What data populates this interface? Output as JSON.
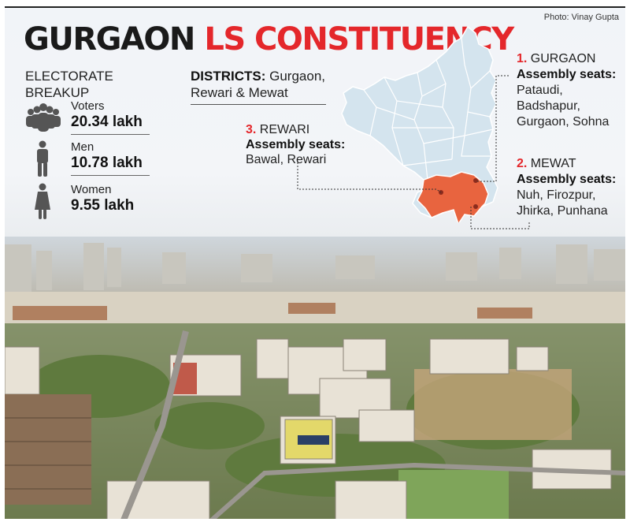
{
  "credit": "Photo: Vinay Gupta",
  "title": {
    "part1": "GURGAON",
    "part2": "LS CONSTITUENCY"
  },
  "electorate_label": "ELECTORATE BREAKUP",
  "stats": [
    {
      "label": "Voters",
      "value": "20.34 lakh",
      "icon": "people-group-icon"
    },
    {
      "label": "Men",
      "value": "10.78 lakh",
      "icon": "man-icon"
    },
    {
      "label": "Women",
      "value": "9.55 lakh",
      "icon": "woman-icon"
    }
  ],
  "districts": {
    "heading": "DISTRICTS:",
    "text": "Gurgaon, Rewari & Mewat"
  },
  "callouts": {
    "gurgaon": {
      "num": "1.",
      "name": "GURGAON",
      "heading": "Assembly seats:",
      "seats": "Pataudi, Badshapur, Gurgaon, Sohna"
    },
    "mewat": {
      "num": "2.",
      "name": "MEWAT",
      "heading": "Assembly seats:",
      "seats": "Nuh, Firozpur, Jhirka, Punhana"
    },
    "rewari": {
      "num": "3.",
      "name": "REWARI",
      "heading": "Assembly seats:",
      "seats": "Bawal, Rewari"
    }
  },
  "colors": {
    "accent": "#e4272b",
    "map_fill": "#d4e4ee",
    "highlight": "#e8643f"
  }
}
